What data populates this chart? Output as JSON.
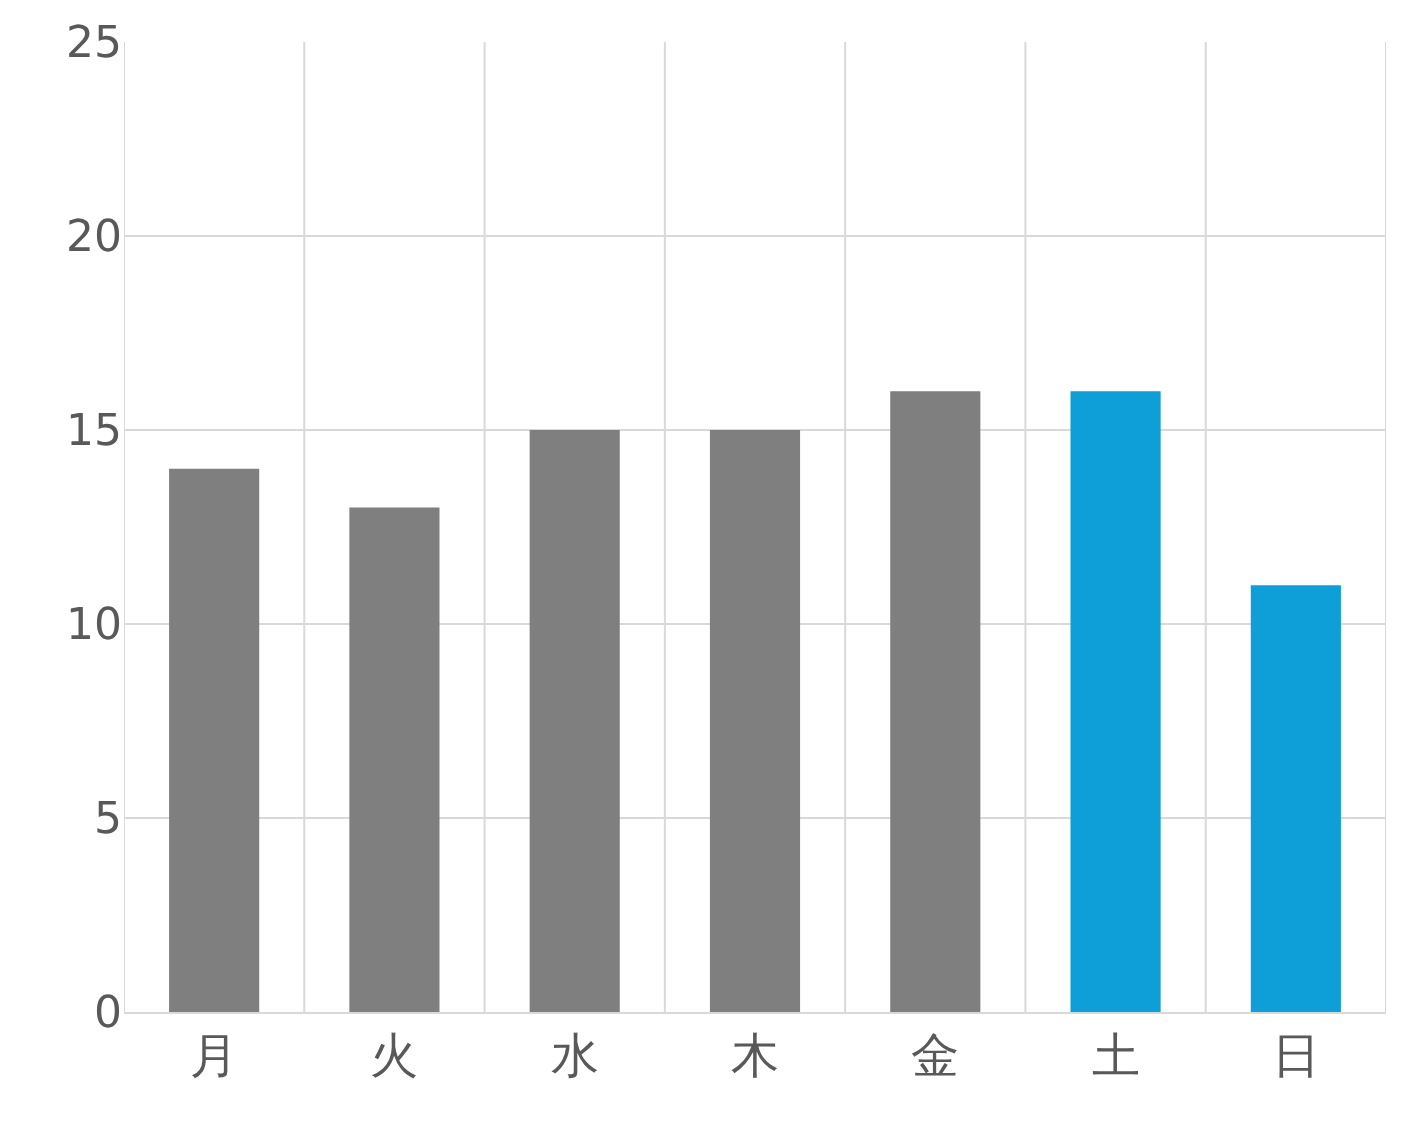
{
  "chart_data": {
    "type": "bar",
    "categories": [
      "月",
      "火",
      "水",
      "木",
      "金",
      "土",
      "日"
    ],
    "values": [
      14,
      13,
      15,
      15,
      16,
      16,
      11
    ],
    "colors": [
      "#7f7f7f",
      "#7f7f7f",
      "#7f7f7f",
      "#7f7f7f",
      "#7f7f7f",
      "#0e9fd8",
      "#0e9fd8"
    ],
    "ylim": [
      0,
      25
    ],
    "yticks": [
      0,
      5,
      10,
      15,
      20,
      25
    ],
    "grid": true
  }
}
